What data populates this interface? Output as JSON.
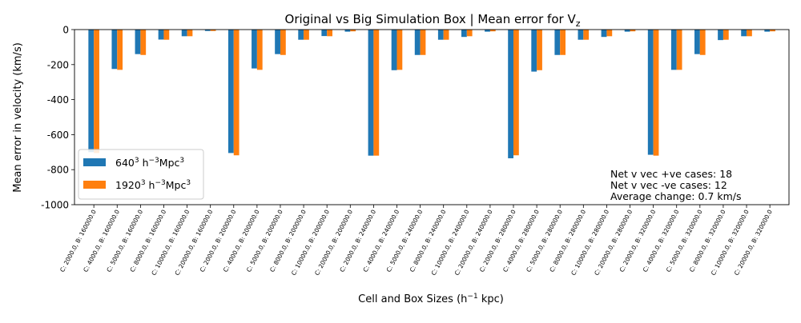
{
  "chart_data": {
    "type": "bar",
    "title": "Original vs Big Simulation Box | Mean error for V",
    "title_sub": "z",
    "xlabel": "Cell and Box Sizes (h",
    "xlabel_sup": "−1",
    "xlabel_end": " kpc)",
    "ylabel": "Mean error in velocity (km/s)",
    "ylim": [
      -1000,
      0
    ],
    "yticks": [
      0,
      -200,
      -400,
      -600,
      -800,
      -1000
    ],
    "categories": [
      "C: 2000.0, B: 160000.0",
      "C: 4000.0, B: 160000.0",
      "C: 5000.0, B: 160000.0",
      "C: 8000.0, B: 160000.0",
      "C: 10000.0, B: 160000.0",
      "C: 20000.0, B: 160000.0",
      "C: 2000.0, B: 200000.0",
      "C: 4000.0, B: 200000.0",
      "C: 5000.0, B: 200000.0",
      "C: 8000.0, B: 200000.0",
      "C: 10000.0, B: 200000.0",
      "C: 20000.0, B: 200000.0",
      "C: 2000.0, B: 240000.0",
      "C: 4000.0, B: 240000.0",
      "C: 5000.0, B: 240000.0",
      "C: 8000.0, B: 240000.0",
      "C: 10000.0, B: 240000.0",
      "C: 20000.0, B: 240000.0",
      "C: 2000.0, B: 280000.0",
      "C: 4000.0, B: 280000.0",
      "C: 5000.0, B: 280000.0",
      "C: 8000.0, B: 280000.0",
      "C: 10000.0, B: 280000.0",
      "C: 20000.0, B: 280000.0",
      "C: 2000.0, B: 320000.0",
      "C: 4000.0, B: 320000.0",
      "C: 5000.0, B: 320000.0",
      "C: 8000.0, B: 320000.0",
      "C: 10000.0, B: 320000.0",
      "C: 20000.0, B: 320000.0"
    ],
    "series": [
      {
        "name": "640",
        "name_sup": "3",
        "name_mid": " h",
        "name_sup2": "−3",
        "name_end": "Mpc",
        "name_sup3": "3",
        "color": "#1f77b4",
        "values": [
          -700,
          -225,
          -140,
          -57,
          -38,
          -8,
          -705,
          -222,
          -140,
          -58,
          -37,
          -12,
          -720,
          -232,
          -145,
          -58,
          -42,
          -12,
          -735,
          -240,
          -145,
          -58,
          -42,
          -12,
          -715,
          -230,
          -140,
          -60,
          -38,
          -12
        ]
      },
      {
        "name": "1920",
        "name_sup": "3",
        "name_mid": " h",
        "name_sup2": "−3",
        "name_end": "Mpc",
        "name_sup3": "3",
        "color": "#ff7f0e",
        "values": [
          -705,
          -230,
          -145,
          -58,
          -38,
          -8,
          -718,
          -230,
          -145,
          -58,
          -38,
          -10,
          -720,
          -230,
          -145,
          -58,
          -38,
          -10,
          -718,
          -232,
          -145,
          -58,
          -38,
          -10,
          -720,
          -230,
          -145,
          -58,
          -38,
          -10
        ]
      }
    ],
    "legend_position": "lower-left",
    "annotations": [
      "Net v vec +ve cases: 18",
      "Net v vec -ve cases: 12",
      "Average change: 0.7 km/s"
    ],
    "grid": false
  }
}
